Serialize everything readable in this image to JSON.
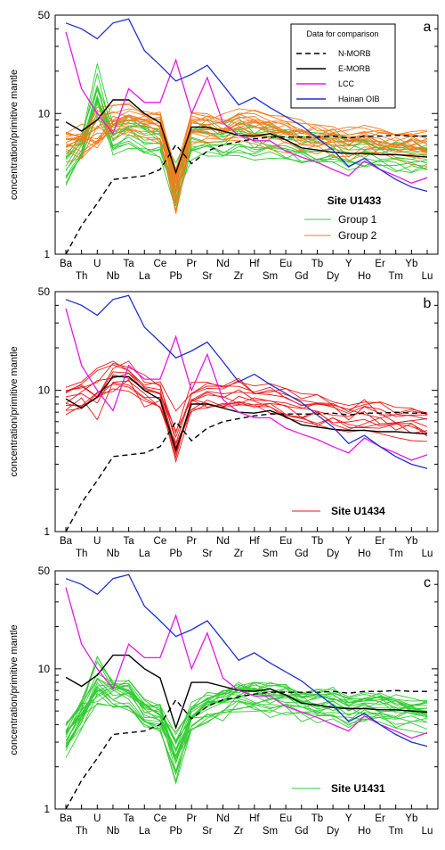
{
  "chart_data": {
    "type": "line",
    "elements": [
      "Ba",
      "Th",
      "U",
      "Nb",
      "Ta",
      "La",
      "Ce",
      "Pb",
      "Pr",
      "Sr",
      "Nd",
      "Zr",
      "Hf",
      "Sm",
      "Eu",
      "Gd",
      "Tb",
      "Dy",
      "Y",
      "Ho",
      "Er",
      "Tm",
      "Yb",
      "Lu"
    ],
    "ylabel": "concentration/primitive mantle",
    "yscale": "log",
    "ylim": [
      1,
      50
    ],
    "yticks": [
      "1",
      "10",
      "50"
    ],
    "legend": {
      "title": "Data for comparison",
      "entries": [
        "N-MORB",
        "E-MORB",
        "LCC",
        "Hainan OIB"
      ]
    },
    "colors": {
      "nmorb": "#000000",
      "emorb": "#000000",
      "lcc": "#e619e6",
      "oib": "#1f2fd6",
      "group1": "#33cc33",
      "group2": "#f07d1e",
      "u1434": "#e81a1a",
      "u1431": "#33cc33"
    },
    "reference_series": [
      {
        "name": "N-MORB",
        "values": [
          1.0,
          1.6,
          2.3,
          3.4,
          3.5,
          3.6,
          4.0,
          6.0,
          4.4,
          5.4,
          6.0,
          6.3,
          6.6,
          6.8,
          6.8,
          6.8,
          6.8,
          6.9,
          6.7,
          6.9,
          6.9,
          7.0,
          6.9,
          6.9
        ]
      },
      {
        "name": "E-MORB",
        "values": [
          8.7,
          7.5,
          9.0,
          12.5,
          12.5,
          10.0,
          8.6,
          3.8,
          8.0,
          8.0,
          7.5,
          7.0,
          6.9,
          7.2,
          6.5,
          5.7,
          5.5,
          5.3,
          5.2,
          5.2,
          5.1,
          5.1,
          5.0,
          4.9
        ]
      },
      {
        "name": "LCC",
        "values": [
          38.0,
          15.0,
          10.0,
          7.2,
          15.0,
          12.0,
          12.0,
          24.0,
          10.0,
          18.0,
          8.6,
          7.0,
          6.4,
          6.4,
          5.4,
          4.9,
          4.5,
          4.0,
          3.6,
          4.6,
          4.0,
          3.6,
          3.2,
          3.5
        ]
      },
      {
        "name": "Hainan OIB",
        "values": [
          44.0,
          40.0,
          34.0,
          44.0,
          47.0,
          28.0,
          22.0,
          17.0,
          19.0,
          22.0,
          16.0,
          11.5,
          13.0,
          11.0,
          9.5,
          8.2,
          6.7,
          5.5,
          4.2,
          4.8,
          4.0,
          3.4,
          3.0,
          2.8
        ]
      }
    ],
    "panels": [
      {
        "label": "a",
        "site": "Site U1433",
        "groups": [
          {
            "name": "Group 1",
            "color": "#33cc33",
            "count": 14,
            "values": [
              4.2,
              6.0,
              15.0,
              6.7,
              7.8,
              6.8,
              6.4,
              3.2,
              6.6,
              6.9,
              6.4,
              7.1,
              6.6,
              6.8,
              6.3,
              6.0,
              5.9,
              5.9,
              5.4,
              5.7,
              5.4,
              5.3,
              5.2,
              5.1
            ]
          },
          {
            "name": "Group 2",
            "color": "#f07d1e",
            "count": 18,
            "values": [
              6.3,
              6.4,
              7.7,
              8.9,
              9.4,
              8.6,
              8.0,
              3.0,
              8.3,
              8.3,
              7.8,
              8.6,
              8.1,
              7.7,
              7.3,
              6.9,
              6.9,
              6.8,
              6.2,
              6.6,
              6.3,
              6.2,
              6.0,
              5.9
            ]
          }
        ]
      },
      {
        "label": "b",
        "site": "Site U1434",
        "groups": [
          {
            "name": "Site U1434",
            "color": "#e81a1a",
            "count": 12,
            "values": [
              8.8,
              9.4,
              10.0,
              12.8,
              13.0,
              10.0,
              9.2,
              4.6,
              8.9,
              9.3,
              9.2,
              9.5,
              8.8,
              8.6,
              8.1,
              7.7,
              7.4,
              7.2,
              6.6,
              7.0,
              6.6,
              6.3,
              6.0,
              5.9
            ]
          }
        ]
      },
      {
        "label": "c",
        "site": "Site U1431",
        "groups": [
          {
            "name": "Site U1431",
            "color": "#33cc33",
            "count": 22,
            "values": [
              3.2,
              4.8,
              8.0,
              6.5,
              6.6,
              4.8,
              4.3,
              2.4,
              4.4,
              5.3,
              5.7,
              6.5,
              6.4,
              6.2,
              6.0,
              5.6,
              5.5,
              5.6,
              5.1,
              5.3,
              5.3,
              5.1,
              5.0,
              4.8
            ]
          }
        ]
      }
    ]
  }
}
